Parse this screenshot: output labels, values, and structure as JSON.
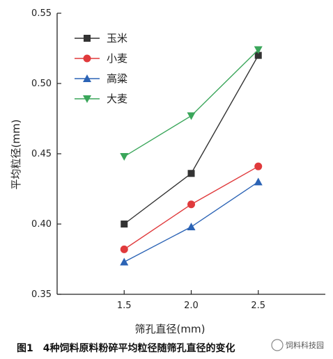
{
  "chart_data": {
    "type": "line",
    "x": [
      1.5,
      2.0,
      2.5
    ],
    "xTickLabels": [
      "1.5",
      "2.0",
      "2.5"
    ],
    "xlim": [
      1.0,
      3.0
    ],
    "ylim": [
      0.35,
      0.55
    ],
    "yTicks": [
      0.35,
      0.4,
      0.45,
      0.5,
      0.55
    ],
    "yTickLabels": [
      "0.35",
      "0.40",
      "0.45",
      "0.50",
      "0.55"
    ],
    "xlabel": "筛孔直径(mm)",
    "ylabel": "平均粒径(mm)",
    "grid": false,
    "legend": "top-left",
    "series": [
      {
        "name": "玉米",
        "values": [
          0.4,
          0.436,
          0.52
        ],
        "color": "#333333",
        "marker": "square"
      },
      {
        "name": "小麦",
        "values": [
          0.382,
          0.414,
          0.441
        ],
        "color": "#e03a3c",
        "marker": "circle"
      },
      {
        "name": "高粱",
        "values": [
          0.373,
          0.398,
          0.43
        ],
        "color": "#2b63b5",
        "marker": "triangle-up"
      },
      {
        "name": "大麦",
        "values": [
          0.448,
          0.477,
          0.524
        ],
        "color": "#3aa65a",
        "marker": "triangle-down"
      }
    ]
  },
  "caption": "图1　4种饲料原料粉碎平均粒径随筛孔直径的变化",
  "watermark": "饲料科技园"
}
